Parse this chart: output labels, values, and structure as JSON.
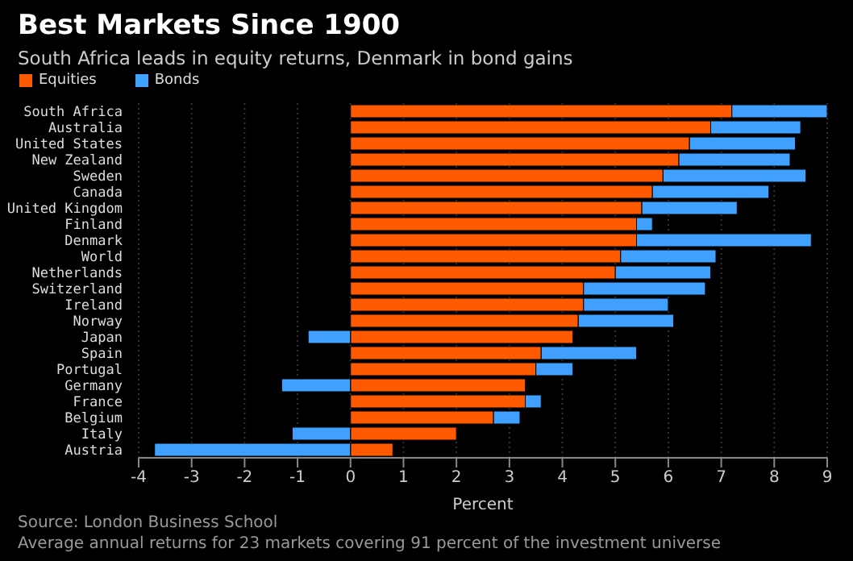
{
  "chart_data": {
    "type": "bar",
    "orientation": "horizontal",
    "stacked": true,
    "title": "Best Markets Since 1900",
    "subtitle": "South Africa leads in equity returns, Denmark in bond gains",
    "xlabel": "Percent",
    "categories": [
      "South Africa",
      "Australia",
      "United States",
      "New Zealand",
      "Sweden",
      "Canada",
      "United Kingdom",
      "Finland",
      "Denmark",
      "World",
      "Netherlands",
      "Switzerland",
      "Ireland",
      "Norway",
      "Japan",
      "Spain",
      "Portugal",
      "Germany",
      "France",
      "Belgium",
      "Italy",
      "Austria"
    ],
    "series": [
      {
        "name": "Equities",
        "color": "#ff5a00",
        "values": [
          7.2,
          6.8,
          6.4,
          6.2,
          5.9,
          5.7,
          5.5,
          5.4,
          5.4,
          5.1,
          5.0,
          4.4,
          4.4,
          4.3,
          4.2,
          3.6,
          3.5,
          3.3,
          3.3,
          2.7,
          2.0,
          0.8
        ]
      },
      {
        "name": "Bonds",
        "color": "#3fa0ff",
        "values": [
          1.8,
          1.7,
          2.0,
          2.1,
          2.7,
          2.2,
          1.8,
          0.3,
          3.3,
          1.8,
          1.8,
          2.3,
          1.6,
          1.8,
          -0.8,
          1.8,
          0.7,
          -1.3,
          0.3,
          0.5,
          -1.1,
          -3.7
        ]
      }
    ],
    "xlim": [
      -4,
      9
    ],
    "xticks": [
      -4,
      -3,
      -2,
      -1,
      0,
      1,
      2,
      3,
      4,
      5,
      6,
      7,
      8,
      9
    ],
    "grid": "x",
    "legend": "top left",
    "annotations": [
      "Source: London Business School",
      "Average annual returns for 23 markets covering 91 percent of the investment universe"
    ]
  }
}
